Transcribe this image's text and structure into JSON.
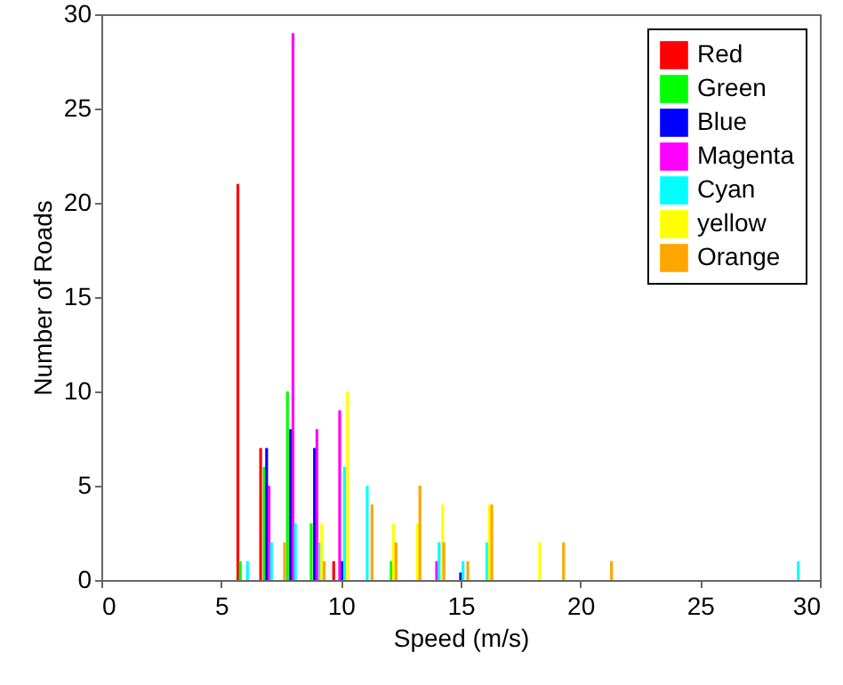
{
  "chart_data": {
    "type": "bar",
    "xlabel": "Speed (m/s)",
    "ylabel": "Number of Roads",
    "xlim": [
      0,
      30
    ],
    "xticks": [
      0,
      5,
      10,
      15,
      20,
      25,
      30
    ],
    "ylim": [
      0,
      30
    ],
    "yticks": [
      0,
      5,
      10,
      15,
      20,
      25,
      30
    ],
    "grid": false,
    "legend": "top right",
    "series": [
      {
        "name": "Red",
        "color": "#ff0000",
        "x": [
          5.7,
          6.65,
          9.7
        ],
        "values": [
          21,
          7,
          1
        ]
      },
      {
        "name": "Green",
        "color": "#00ff00",
        "x": [
          5.8,
          6.8,
          7.77,
          8.76,
          12.1
        ],
        "values": [
          1,
          6,
          10,
          3,
          1
        ]
      },
      {
        "name": "Blue",
        "color": "#0000ff",
        "x": [
          6.9,
          7.9,
          8.9,
          10.05,
          15.0
        ],
        "values": [
          7,
          8,
          7,
          1,
          0.4
        ]
      },
      {
        "name": "Magenta",
        "color": "#ff00ff",
        "x": [
          7.0,
          8.0,
          9.0,
          9.95,
          14.0
        ],
        "values": [
          5,
          29,
          8,
          9,
          1
        ]
      },
      {
        "name": "Cyan",
        "color": "#00ffff",
        "x": [
          6.1,
          7.1,
          8.1,
          9.13,
          10.15,
          11.1,
          14.1,
          15.1,
          16.1,
          29.1
        ],
        "values": [
          1,
          2,
          3,
          2,
          6,
          5,
          2,
          1,
          2,
          1
        ]
      },
      {
        "name": "yellow",
        "color": "#ffff00",
        "x": [
          9.2,
          10.28,
          12.2,
          13.2,
          14.25,
          16.2,
          18.3
        ],
        "values": [
          3,
          10,
          3,
          3,
          4,
          4,
          2
        ]
      },
      {
        "name": "Orange",
        "color": "#ffa500",
        "x": [
          7.65,
          9.3,
          11.3,
          12.3,
          13.3,
          14.3,
          15.3,
          16.3,
          19.3,
          21.3
        ],
        "values": [
          2,
          1,
          4,
          2,
          5,
          2,
          1,
          4,
          2,
          1
        ]
      }
    ]
  }
}
